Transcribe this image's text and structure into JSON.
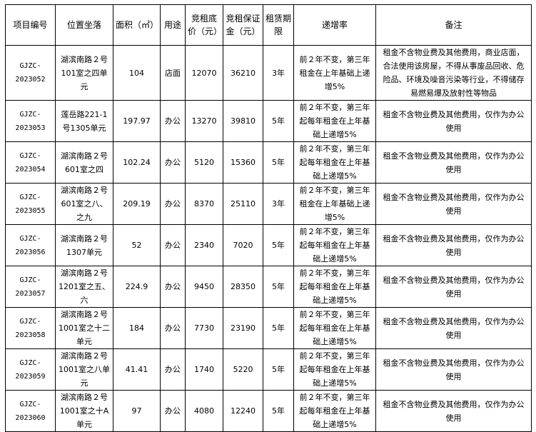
{
  "headers": [
    "项目编号",
    "位置坐落",
    "面积（㎡）",
    "用途",
    "竞租底价（元）",
    "竞租保证金（元）",
    "租赁期限",
    "递增率",
    "备注"
  ],
  "rows": [
    {
      "code": "GJZC-2023052",
      "location": "湖滨南路２号101室之四单元",
      "area": "104",
      "use": "店面",
      "price": "12070",
      "deposit": "36210",
      "term": "3年",
      "rate": "前２年不变，第三年租金在上年基础上递增5%",
      "note": "租金不含物业费及其他费用，商业店面，合法使用该房屋，不得从事废品回收、危险品、环境及噪音污染等行业，不得储存易燃易爆及放射性等物品"
    },
    {
      "code": "GJZC-2023053",
      "location": "莲岳路221-1号1305单元",
      "area": "197.97",
      "use": "办公",
      "price": "13270",
      "deposit": "39810",
      "term": "5年",
      "rate": "前２年不变，第三年起每年租金在上年基础上递增5%",
      "note": "租金不含物业费及其他费用，仅作为办公使用"
    },
    {
      "code": "GJZC-2023054",
      "location": "湖滨南路２号601室之四",
      "area": "102.24",
      "use": "办公",
      "price": "5120",
      "deposit": "15360",
      "term": "5年",
      "rate": "前２年不变，第三年起每年租金在上年基础上递增5%",
      "note": "租金不含物业费及其他费用，仅作为办公使用"
    },
    {
      "code": "GJZC-2023055",
      "location": "湖滨南路２号601室之八、之九",
      "area": "209.19",
      "use": "办公",
      "price": "8370",
      "deposit": "25110",
      "term": "3年",
      "rate": "前２年不变，第三年租金在上年基础上递增5%",
      "note": "租金不含物业费及其他费用，仅作为办公使用"
    },
    {
      "code": "GJZC-2023056",
      "location": "湖滨南路２号1307单元",
      "area": "52",
      "use": "办公",
      "price": "2340",
      "deposit": "7020",
      "term": "5年",
      "rate": "前２年不变，第三年起每年租金在上年基础上递增5%",
      "note": "租金不含物业费及其他费用，仅作为办公使用"
    },
    {
      "code": "GJZC-2023057",
      "location": "湖滨南路２号1201室之五、六",
      "area": "224.9",
      "use": "办公",
      "price": "9450",
      "deposit": "28350",
      "term": "5年",
      "rate": "前２年不变，第三年起每年租金在上年基础上递增5%",
      "note": "租金不含物业费及其他费用，仅作为办公使用"
    },
    {
      "code": "GJZC-2023058",
      "location": "湖滨南路２号1001室之十二单元",
      "area": "184",
      "use": "办公",
      "price": "7730",
      "deposit": "23190",
      "term": "5年",
      "rate": "前２年不变，第三年起每年租金在上年基础上递增5%",
      "note": "租金不含物业费及其他费用，仅作为办公使用"
    },
    {
      "code": "GJZC-2023059",
      "location": "湖滨南路２号1001室之八单元",
      "area": "41.41",
      "use": "办公",
      "price": "1740",
      "deposit": "5220",
      "term": "5年",
      "rate": "前２年不变，第三年起每年租金在上年基础上递增5%",
      "note": "租金不含物业费及其他费用，仅作为办公使用"
    },
    {
      "code": "GJZC-2023060",
      "location": "湖滨南路２号1001室之十A单元",
      "area": "97",
      "use": "办公",
      "price": "4080",
      "deposit": "12240",
      "term": "5年",
      "rate": "前２年不变，第三年起每年租金在上年基础上递增5%",
      "note": "租金不含物业费及其他费用，仅作为办公使用"
    }
  ]
}
